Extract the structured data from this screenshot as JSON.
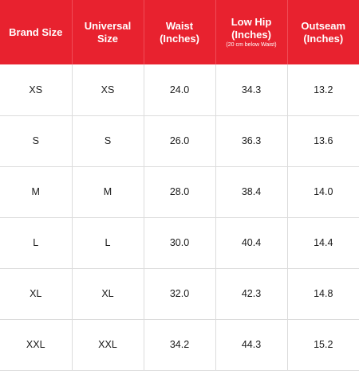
{
  "header": {
    "brand_size": "Brand Size",
    "universal_size": "Universal Size",
    "waist": "Waist",
    "waist_unit": "(Inches)",
    "low_hip": "Low Hip",
    "low_hip_unit": "(Inches)",
    "low_hip_note": "(20 cm below Waist)",
    "outseam": "Outseam",
    "outseam_unit": "(Inches)"
  },
  "rows": [
    {
      "brand": "XS",
      "universal": "XS",
      "waist": "24.0",
      "low_hip": "34.3",
      "outseam": "13.2"
    },
    {
      "brand": "S",
      "universal": "S",
      "waist": "26.0",
      "low_hip": "36.3",
      "outseam": "13.6"
    },
    {
      "brand": "M",
      "universal": "M",
      "waist": "28.0",
      "low_hip": "38.4",
      "outseam": "14.0"
    },
    {
      "brand": "L",
      "universal": "L",
      "waist": "30.0",
      "low_hip": "40.4",
      "outseam": "14.4"
    },
    {
      "brand": "XL",
      "universal": "XL",
      "waist": "32.0",
      "low_hip": "42.3",
      "outseam": "14.8"
    },
    {
      "brand": "XXL",
      "universal": "XXL",
      "waist": "34.2",
      "low_hip": "44.3",
      "outseam": "15.2"
    }
  ],
  "colors": {
    "header_bg": "#e8222f",
    "header_text": "#ffffff",
    "grid_line": "#dcdcdc"
  }
}
